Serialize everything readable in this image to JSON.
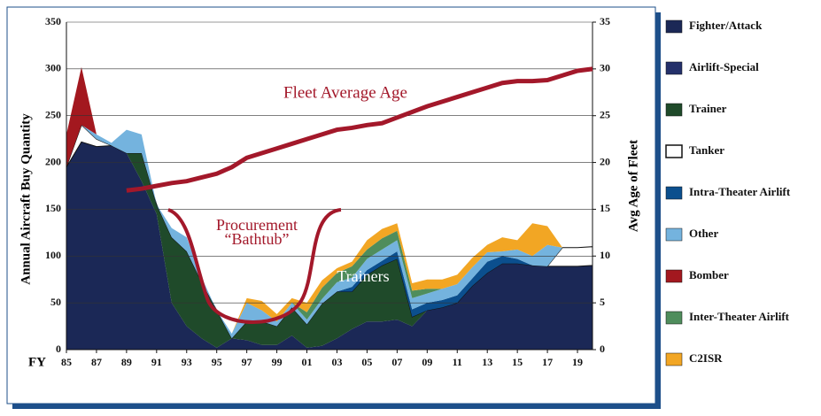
{
  "chart_data": {
    "type": "stacked_area",
    "y_label": "Annual Aircraft Buy Quantity",
    "y2_label": "Avg Age of Fleet",
    "x_label": "FY",
    "annotations": [
      "Procurement",
      "“Bathtub”",
      "Trainers"
    ],
    "x": [
      1985,
      1986,
      1987,
      1988,
      1989,
      1990,
      1991,
      1992,
      1993,
      1994,
      1995,
      1996,
      1997,
      1998,
      1999,
      2000,
      2001,
      2002,
      2003,
      2004,
      2005,
      2006,
      2007,
      2008,
      2009,
      2010,
      2011,
      2012,
      2013,
      2014,
      2015,
      2016,
      2017,
      2018,
      2019,
      2020
    ],
    "xlim": [
      1985,
      2020
    ],
    "xticks": [
      {
        "value": 1985,
        "label": "85"
      },
      {
        "value": 1987,
        "label": "87"
      },
      {
        "value": 1989,
        "label": "89"
      },
      {
        "value": 1991,
        "label": "91"
      },
      {
        "value": 1993,
        "label": "93"
      },
      {
        "value": 1995,
        "label": "95"
      },
      {
        "value": 1997,
        "label": "97"
      },
      {
        "value": 1999,
        "label": "99"
      },
      {
        "value": 2001,
        "label": "01"
      },
      {
        "value": 2003,
        "label": "03"
      },
      {
        "value": 2005,
        "label": "05"
      },
      {
        "value": 2007,
        "label": "07"
      },
      {
        "value": 2009,
        "label": "09"
      },
      {
        "value": 2011,
        "label": "11"
      },
      {
        "value": 2013,
        "label": "13"
      },
      {
        "value": 2015,
        "label": "15"
      },
      {
        "value": 2017,
        "label": "17"
      },
      {
        "value": 2019,
        "label": "19"
      }
    ],
    "ylim": [
      0,
      350
    ],
    "yticks": [
      0,
      50,
      100,
      150,
      200,
      250,
      300,
      350
    ],
    "y2lim": [
      0,
      35
    ],
    "y2ticks": [
      0,
      5,
      10,
      15,
      20,
      25,
      30,
      35
    ],
    "grid": true,
    "series": [
      {
        "name": "Fighter/Attack",
        "color": "#1b2856",
        "values": [
          195,
          222,
          217,
          218,
          210,
          180,
          145,
          50,
          25,
          12,
          2,
          12,
          10,
          5,
          5,
          15,
          2,
          4,
          12,
          22,
          30,
          30,
          32,
          25,
          42,
          45,
          50,
          68,
          82,
          92,
          92,
          90,
          89,
          89,
          89,
          90
        ]
      },
      {
        "name": "Airlift-Special",
        "color": "#24306a",
        "values": [
          0,
          0,
          0,
          0,
          0,
          0,
          0,
          0,
          0,
          0,
          0,
          0,
          0,
          0,
          0,
          0,
          0,
          0,
          0,
          0,
          0,
          0,
          0,
          0,
          0,
          0,
          0,
          0,
          0,
          0,
          0,
          0,
          0,
          0,
          0,
          0
        ]
      },
      {
        "name": "Trainer",
        "color": "#1f4a2a",
        "values": [
          0,
          0,
          0,
          0,
          0,
          30,
          10,
          70,
          80,
          60,
          40,
          0,
          20,
          25,
          20,
          30,
          25,
          45,
          50,
          40,
          50,
          60,
          65,
          10,
          0,
          0,
          0,
          0,
          0,
          0,
          0,
          0,
          0,
          0,
          0,
          0
        ]
      },
      {
        "name": "Tanker",
        "color": "#ffffff",
        "values": [
          0,
          18,
          8,
          0,
          0,
          0,
          0,
          0,
          0,
          0,
          0,
          0,
          0,
          0,
          0,
          0,
          0,
          0,
          0,
          0,
          0,
          0,
          0,
          0,
          0,
          0,
          0,
          0,
          0,
          0,
          0,
          0,
          0,
          20,
          20,
          20
        ]
      },
      {
        "name": "Intra-Theater Airlift",
        "color": "#0b4f8e",
        "values": [
          0,
          0,
          0,
          0,
          0,
          0,
          0,
          0,
          0,
          0,
          0,
          0,
          0,
          0,
          0,
          0,
          0,
          0,
          0,
          5,
          5,
          5,
          8,
          8,
          8,
          8,
          8,
          8,
          12,
          8,
          5,
          0,
          0,
          0,
          0,
          0
        ]
      },
      {
        "name": "Other",
        "color": "#74b3de",
        "values": [
          0,
          0,
          5,
          3,
          25,
          20,
          0,
          10,
          15,
          5,
          0,
          5,
          20,
          12,
          5,
          5,
          5,
          5,
          10,
          10,
          12,
          12,
          12,
          12,
          10,
          12,
          12,
          12,
          10,
          5,
          10,
          10,
          23,
          0,
          0,
          0
        ]
      },
      {
        "name": "Bomber",
        "color": "#a3181f",
        "values": [
          35,
          62,
          0,
          0,
          0,
          0,
          0,
          0,
          0,
          0,
          0,
          0,
          0,
          0,
          0,
          0,
          0,
          0,
          0,
          0,
          0,
          0,
          0,
          0,
          0,
          0,
          0,
          0,
          0,
          0,
          0,
          0,
          0,
          0,
          0,
          0
        ]
      },
      {
        "name": "Inter-Theater Airlift",
        "color": "#4f8d5c",
        "values": [
          0,
          0,
          0,
          0,
          0,
          0,
          0,
          0,
          0,
          0,
          0,
          0,
          0,
          0,
          0,
          0,
          8,
          12,
          10,
          12,
          10,
          12,
          10,
          8,
          5,
          0,
          0,
          0,
          0,
          0,
          0,
          0,
          0,
          0,
          0,
          0
        ]
      },
      {
        "name": "C2ISR",
        "color": "#f2a624",
        "values": [
          0,
          0,
          0,
          0,
          0,
          0,
          0,
          0,
          0,
          0,
          0,
          0,
          5,
          10,
          8,
          5,
          10,
          8,
          5,
          5,
          10,
          10,
          8,
          8,
          10,
          10,
          10,
          10,
          8,
          15,
          10,
          35,
          20,
          0,
          0,
          0
        ]
      }
    ],
    "line": {
      "name": "Fleet Average Age",
      "axis": "y2",
      "color": "#a3182a",
      "x": [
        1989,
        1990,
        1991,
        1992,
        1993,
        1994,
        1995,
        1996,
        1997,
        1998,
        1999,
        2000,
        2001,
        2002,
        2003,
        2004,
        2005,
        2006,
        2007,
        2008,
        2009,
        2010,
        2011,
        2012,
        2013,
        2014,
        2015,
        2016,
        2017,
        2018,
        2019,
        2020
      ],
      "values": [
        17,
        17.2,
        17.5,
        17.8,
        18,
        18.4,
        18.8,
        19.5,
        20.5,
        21,
        21.5,
        22,
        22.5,
        23,
        23.5,
        23.7,
        24,
        24.2,
        24.8,
        25.4,
        26,
        26.5,
        27,
        27.5,
        28,
        28.5,
        28.7,
        28.7,
        28.8,
        29.3,
        29.8,
        30
      ]
    }
  }
}
